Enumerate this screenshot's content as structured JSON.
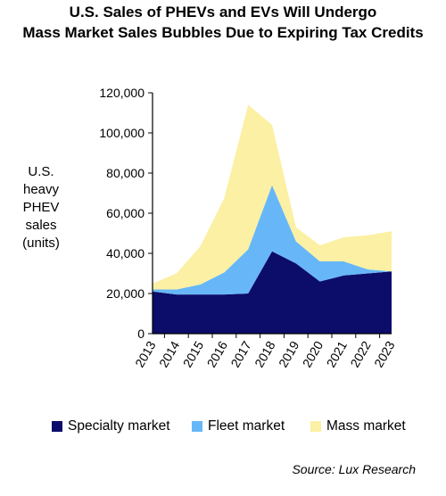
{
  "title_line1": "U.S. Sales of PHEVs and EVs Will Undergo",
  "title_line2": "Mass Market Sales Bubbles Due to Expiring Tax Credits",
  "source": "Source: Lux Research",
  "colors": {
    "specialty": "#0c0c6b",
    "fleet": "#67b7f8",
    "mass": "#fbf0a3"
  },
  "chart_data": {
    "type": "area",
    "stacked": true,
    "title": "U.S. Sales of PHEVs and EVs Will Undergo Mass Market Sales Bubbles Due to Expiring Tax Credits",
    "ylabel_lines": [
      "U.S.",
      "heavy",
      "PHEV",
      "sales",
      "(units)"
    ],
    "xlabel": "",
    "ylim": [
      0,
      120000
    ],
    "yticks": [
      "0",
      "20,000",
      "40,000",
      "60,000",
      "80,000",
      "100,000",
      "120,000"
    ],
    "ytick_values": [
      0,
      20000,
      40000,
      60000,
      80000,
      100000,
      120000
    ],
    "categories": [
      "2013",
      "2014",
      "2015",
      "2016",
      "2017",
      "2018",
      "2019",
      "2020",
      "2021",
      "2022",
      "2023"
    ],
    "series": [
      {
        "name": "Specialty market",
        "values": [
          21000,
          19500,
          19500,
          19500,
          20000,
          41000,
          35000,
          26000,
          29000,
          30000,
          31000
        ]
      },
      {
        "name": "Fleet market",
        "values": [
          1000,
          2500,
          5000,
          11000,
          22000,
          33000,
          11000,
          10000,
          7000,
          2000,
          0
        ]
      },
      {
        "name": "Mass market",
        "values": [
          3000,
          8000,
          19000,
          37000,
          72000,
          30000,
          7000,
          8000,
          12000,
          17000,
          20000
        ]
      }
    ],
    "legend_position": "bottom",
    "grid": false
  }
}
